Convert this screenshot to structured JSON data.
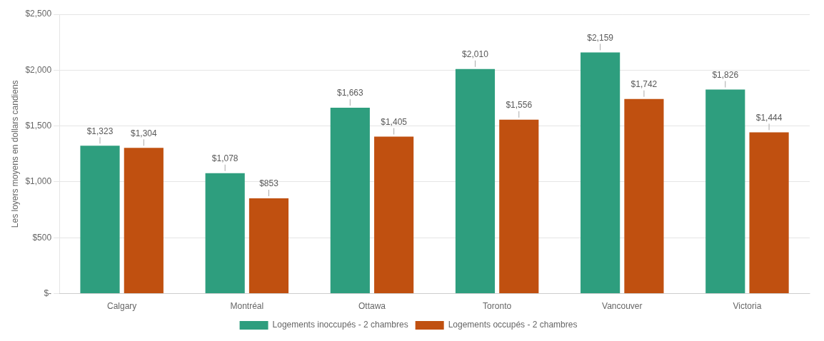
{
  "chart_data": {
    "type": "bar",
    "categories": [
      "Calgary",
      "Montréal",
      "Ottawa",
      "Toronto",
      "Vancouver",
      "Victoria"
    ],
    "series": [
      {
        "name": "Logements inoccupés - 2 chambres",
        "color": "#2E9E7E",
        "values": [
          1323,
          1078,
          1663,
          2010,
          2159,
          1826
        ],
        "value_labels": [
          "$1,323",
          "$1,078",
          "$1,663",
          "$2,010",
          "$2,159",
          "$1,826"
        ]
      },
      {
        "name": "Logements occupés - 2 chambres",
        "color": "#C05010",
        "values": [
          1304,
          853,
          1405,
          1556,
          1742,
          1444
        ],
        "value_labels": [
          "$1,304",
          "$853",
          "$1,405",
          "$1,556",
          "$1,742",
          "$1,444"
        ]
      }
    ],
    "ylabel": "Les loyers moyens en dollars candiens",
    "ylim": [
      0,
      2500
    ],
    "yticks": [
      {
        "value": 0,
        "label": "$-"
      },
      {
        "value": 500,
        "label": "$500"
      },
      {
        "value": 1000,
        "label": "$1,000"
      },
      {
        "value": 1500,
        "label": "$1,500"
      },
      {
        "value": 2000,
        "label": "$2,000"
      },
      {
        "value": 2500,
        "label": "$2,500"
      }
    ],
    "grid": true,
    "legend": "bottom",
    "data_labels": true
  }
}
